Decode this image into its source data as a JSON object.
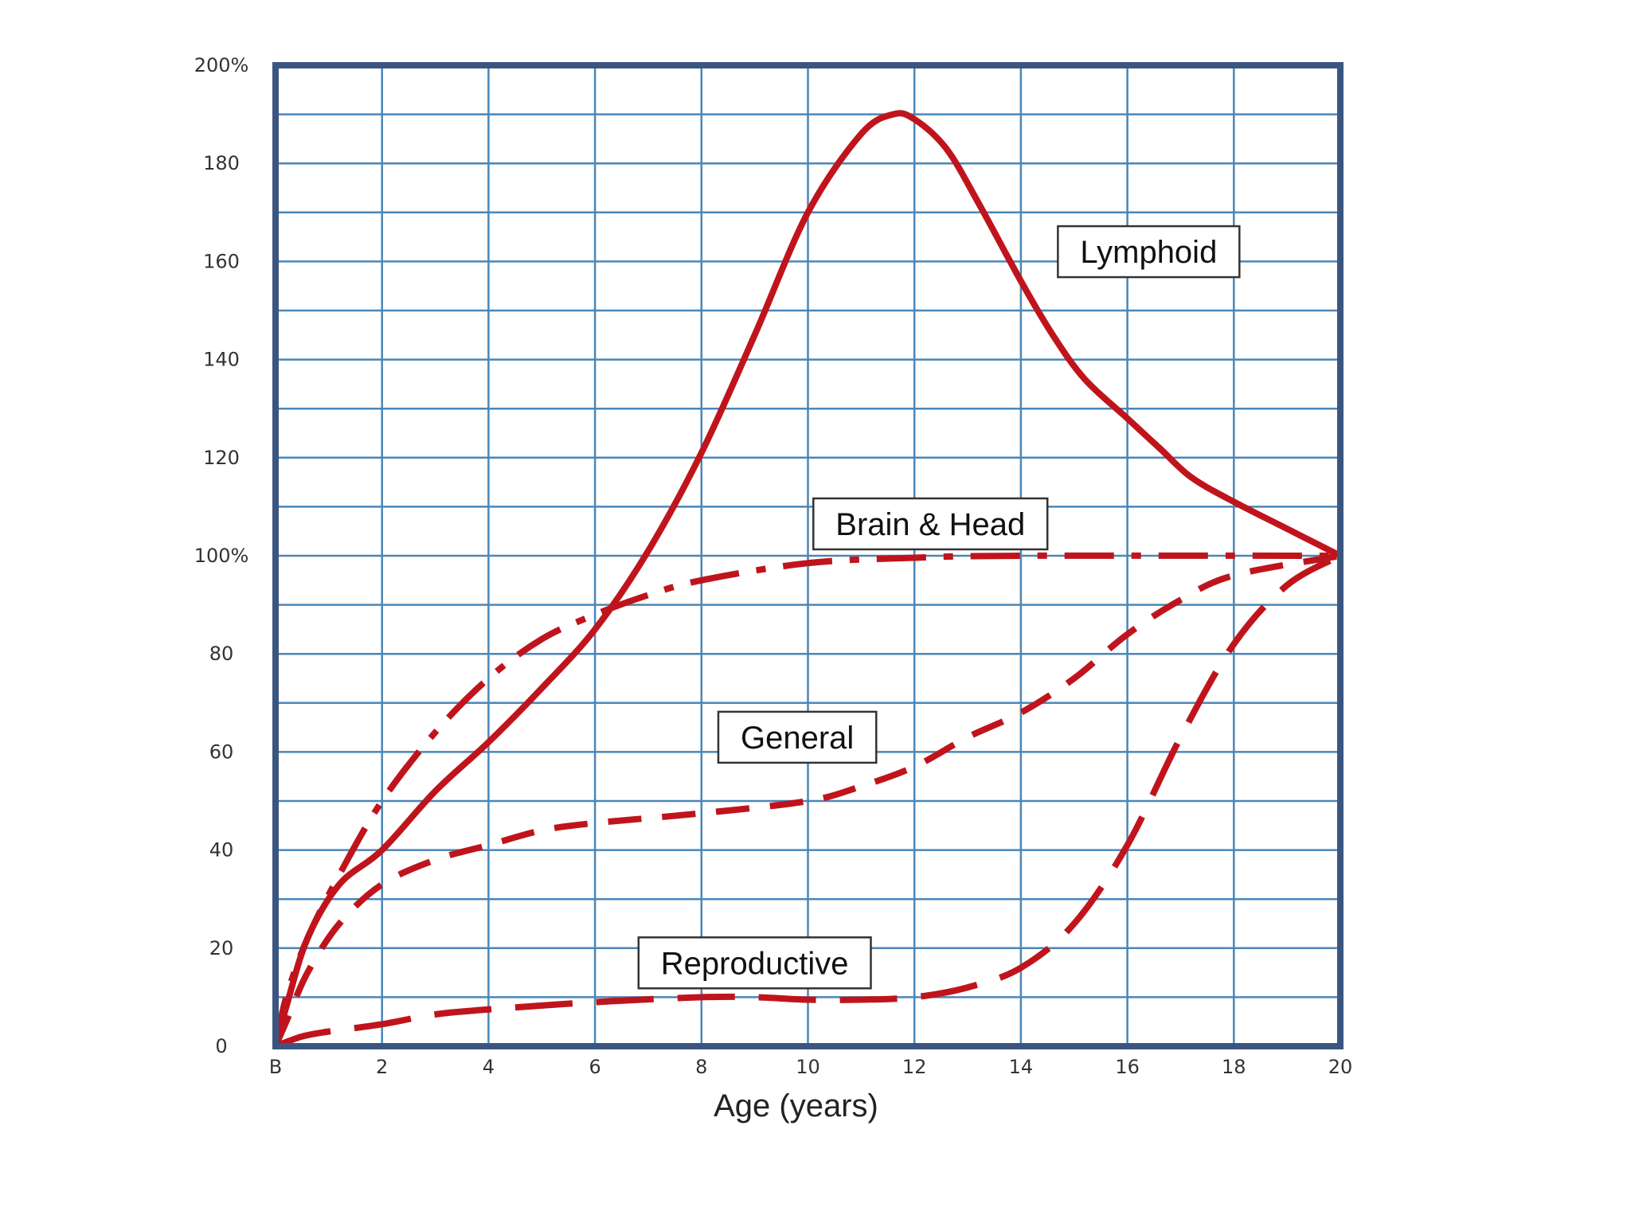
{
  "chart_data": {
    "type": "line",
    "title": "",
    "xlabel": "Age (years)",
    "ylabel": "",
    "xlim": [
      0,
      20
    ],
    "ylim": [
      0,
      200
    ],
    "x_tick_labels": [
      {
        "x": 0,
        "label": "B"
      },
      {
        "x": 2,
        "label": "2"
      },
      {
        "x": 4,
        "label": "4"
      },
      {
        "x": 6,
        "label": "6"
      },
      {
        "x": 8,
        "label": "8"
      },
      {
        "x": 10,
        "label": "10"
      },
      {
        "x": 12,
        "label": "12"
      },
      {
        "x": 14,
        "label": "14"
      },
      {
        "x": 16,
        "label": "16"
      },
      {
        "x": 18,
        "label": "18"
      },
      {
        "x": 20,
        "label": "20"
      }
    ],
    "y_tick_labels": [
      {
        "y": 0,
        "label": "0"
      },
      {
        "y": 20,
        "label": "20"
      },
      {
        "y": 40,
        "label": "40"
      },
      {
        "y": 60,
        "label": "60"
      },
      {
        "y": 80,
        "label": "80"
      },
      {
        "y": 100,
        "label": "100%"
      },
      {
        "y": 120,
        "label": "120"
      },
      {
        "y": 140,
        "label": "140"
      },
      {
        "y": 160,
        "label": "160"
      },
      {
        "y": 180,
        "label": "180"
      },
      {
        "y": 200,
        "label": "200%"
      }
    ],
    "grid": {
      "x_step": 2,
      "y_step": 10
    },
    "colors": {
      "series": "#c0141c",
      "grid": "#4a86b8",
      "frame": "#3a5680"
    },
    "series": [
      {
        "name": "Lymphoid",
        "style": "solid",
        "label_anchor": {
          "x": 16.4,
          "y": 162
        },
        "points": [
          [
            0,
            0
          ],
          [
            0.2,
            8
          ],
          [
            0.6,
            22
          ],
          [
            1.2,
            33
          ],
          [
            2,
            40
          ],
          [
            3,
            52
          ],
          [
            4,
            62
          ],
          [
            5,
            73
          ],
          [
            6,
            85
          ],
          [
            7,
            101
          ],
          [
            8,
            121
          ],
          [
            9,
            145
          ],
          [
            10,
            170
          ],
          [
            11,
            186
          ],
          [
            11.6,
            190
          ],
          [
            12,
            189
          ],
          [
            12.6,
            183
          ],
          [
            13.2,
            172
          ],
          [
            14,
            156
          ],
          [
            14.6,
            145
          ],
          [
            15.2,
            136
          ],
          [
            16,
            128
          ],
          [
            16.6,
            122
          ],
          [
            17.2,
            116
          ],
          [
            18,
            111
          ],
          [
            19,
            105.5
          ],
          [
            20,
            100
          ]
        ]
      },
      {
        "name": "Brain & Head",
        "style": "dashdot",
        "label_anchor": {
          "x": 12.3,
          "y": 106.5
        },
        "points": [
          [
            0,
            0
          ],
          [
            0.2,
            10
          ],
          [
            0.6,
            22
          ],
          [
            1.2,
            35
          ],
          [
            2,
            50
          ],
          [
            3,
            64
          ],
          [
            4,
            75
          ],
          [
            5,
            83
          ],
          [
            6,
            88
          ],
          [
            7,
            92
          ],
          [
            8,
            95
          ],
          [
            10,
            98.5
          ],
          [
            12,
            99.6
          ],
          [
            14,
            100
          ],
          [
            20,
            100
          ]
        ]
      },
      {
        "name": "General",
        "style": "dashed",
        "label_anchor": {
          "x": 9.8,
          "y": 63
        },
        "points": [
          [
            0,
            0
          ],
          [
            0.2,
            5
          ],
          [
            0.6,
            15
          ],
          [
            1.2,
            25
          ],
          [
            2,
            33
          ],
          [
            3,
            38
          ],
          [
            4,
            41
          ],
          [
            5,
            44
          ],
          [
            6,
            45.5
          ],
          [
            8,
            47.5
          ],
          [
            10,
            50
          ],
          [
            11,
            53
          ],
          [
            12,
            57
          ],
          [
            13,
            63
          ],
          [
            14,
            68
          ],
          [
            15,
            75
          ],
          [
            16,
            84
          ],
          [
            17,
            91
          ],
          [
            18,
            96
          ],
          [
            20,
            100
          ]
        ]
      },
      {
        "name": "Reproductive",
        "style": "longdash",
        "label_anchor": {
          "x": 9.0,
          "y": 17
        },
        "points": [
          [
            0,
            0
          ],
          [
            0.5,
            2
          ],
          [
            1,
            3
          ],
          [
            2,
            4.5
          ],
          [
            3,
            6.5
          ],
          [
            4,
            7.5
          ],
          [
            6,
            9
          ],
          [
            8,
            10
          ],
          [
            9,
            10
          ],
          [
            10,
            9.5
          ],
          [
            11,
            9.5
          ],
          [
            12,
            10
          ],
          [
            13,
            12
          ],
          [
            14,
            16
          ],
          [
            15,
            25
          ],
          [
            16,
            41
          ],
          [
            17,
            63
          ],
          [
            18,
            82
          ],
          [
            19,
            94
          ],
          [
            20,
            100
          ]
        ]
      }
    ],
    "annotations": [
      "Lymphoid",
      "Brain & Head",
      "General",
      "Reproductive"
    ]
  }
}
